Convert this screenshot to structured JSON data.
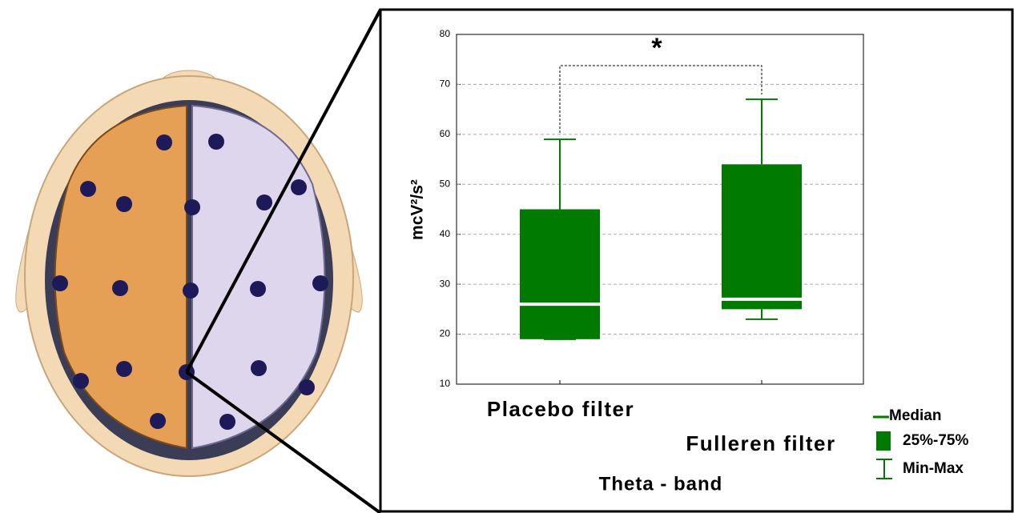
{
  "chart_data": {
    "type": "box",
    "ylabel": "mcV²/s²",
    "xlabel": "Theta - band",
    "categories": [
      "Placebo filter",
      "Fulleren filter"
    ],
    "boxes": [
      {
        "min": 19,
        "q1": 19,
        "median": 26,
        "q3": 45,
        "max": 59
      },
      {
        "min": 23,
        "q1": 25,
        "median": 27,
        "q3": 54,
        "max": 67
      }
    ],
    "color": "#007a00",
    "ylim": [
      10,
      80
    ],
    "yticks": [
      10,
      20,
      30,
      40,
      50,
      60,
      70,
      80
    ],
    "grid": true,
    "annotation": "*",
    "legend": [
      "Median",
      "25%-75%",
      "Min-Max"
    ]
  }
}
